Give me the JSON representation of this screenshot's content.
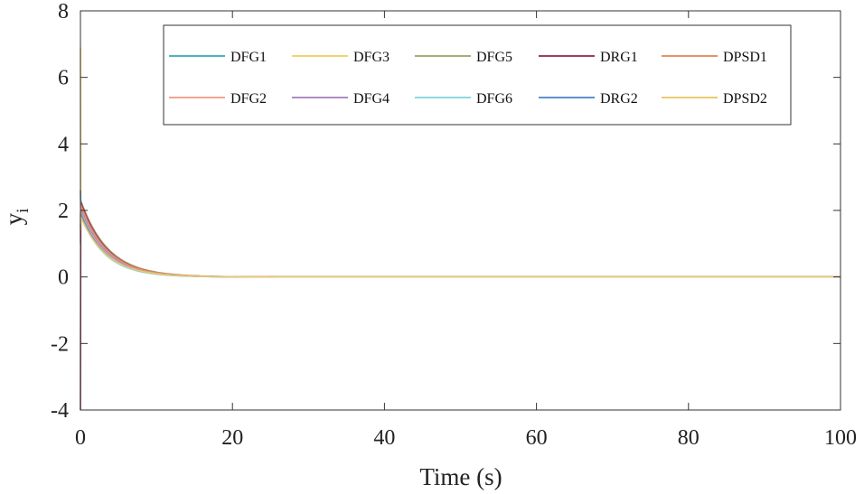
{
  "chart_data": {
    "type": "line",
    "title": "",
    "xlabel": "Time (s)",
    "ylabel": "y",
    "ylabel_sub": "i",
    "xlim": [
      0,
      100
    ],
    "ylim": [
      -4,
      8
    ],
    "xticks": [
      "0",
      "20",
      "40",
      "60",
      "80",
      "100"
    ],
    "yticks": [
      "-4",
      "-2",
      "0",
      "2",
      "4",
      "6",
      "8"
    ],
    "grid": false,
    "legend_position": "top-right",
    "series": [
      {
        "name": "DFG1",
        "color": "#4fb3bf",
        "y0": 1.5,
        "peak": 2.05,
        "tau": 3.3
      },
      {
        "name": "DFG2",
        "color": "#f3a38f",
        "y0": 1.2,
        "peak": 1.95,
        "tau": 3.4
      },
      {
        "name": "DFG3",
        "color": "#f2d36b",
        "y0": 6.9,
        "peak": 2.2,
        "tau": 3.5
      },
      {
        "name": "DFG4",
        "color": "#b08cc2",
        "y0": 1.8,
        "peak": 2.1,
        "tau": 3.4
      },
      {
        "name": "DFG5",
        "color": "#a8ad78",
        "y0": 1.0,
        "peak": 2.3,
        "tau": 3.6
      },
      {
        "name": "DFG6",
        "color": "#8fd9e0",
        "y0": 1.9,
        "peak": 1.85,
        "tau": 3.2
      },
      {
        "name": "DRG1",
        "color": "#9e3d5e",
        "y0": -4.0,
        "peak": 2.25,
        "tau": 3.5
      },
      {
        "name": "DRG2",
        "color": "#5b92cf",
        "y0": 2.6,
        "peak": 1.9,
        "tau": 3.3
      },
      {
        "name": "DPSD1",
        "color": "#e7936a",
        "y0": 1.4,
        "peak": 2.15,
        "tau": 3.5
      },
      {
        "name": "DPSD2",
        "color": "#e9cb72",
        "y0": 1.6,
        "peak": 1.8,
        "tau": 3.4
      }
    ]
  }
}
